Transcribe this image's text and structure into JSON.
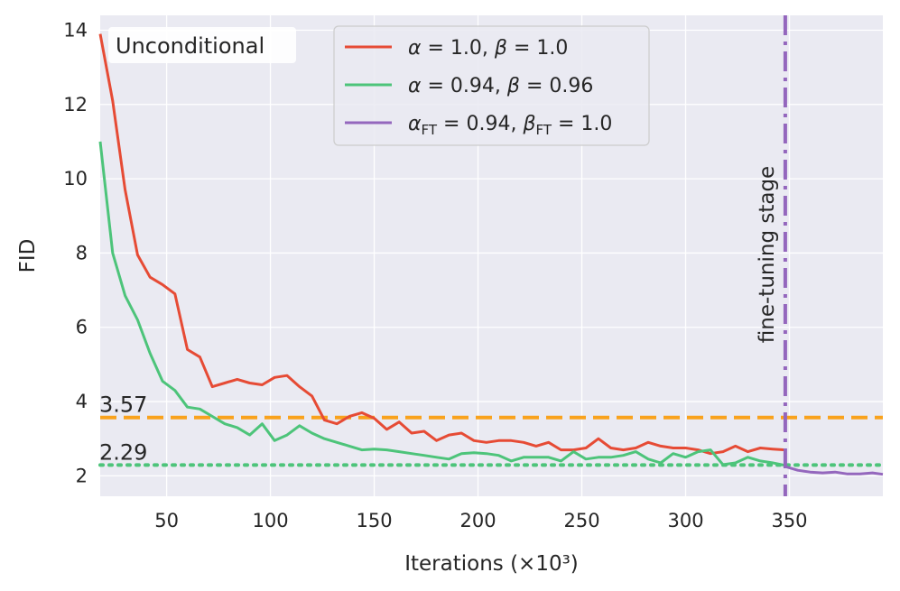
{
  "chart_data": {
    "type": "line",
    "title": "",
    "panel_label": "Unconditional",
    "xlabel": "Iterations (×10³)",
    "ylabel": "FID",
    "xlim": [
      18,
      395
    ],
    "ylim": [
      1.45,
      14.4
    ],
    "xticks": [
      50,
      100,
      150,
      200,
      250,
      300,
      350
    ],
    "yticks": [
      2,
      4,
      6,
      8,
      10,
      12,
      14
    ],
    "grid": true,
    "legend_position": "top-center",
    "colors": {
      "red": "#E64B35",
      "green": "#4DC47A",
      "purple": "#9467BD",
      "orange": "#F9A21C",
      "background": "#EAEAF2"
    },
    "series": [
      {
        "name": "α = 1.0, β = 1.0",
        "legend_parts": [
          [
            "α",
            "italic"
          ],
          [
            " = 1.0, ",
            ""
          ],
          [
            "β",
            "italic"
          ],
          [
            " = 1.0",
            ""
          ]
        ],
        "color": "#E64B35",
        "x": [
          18,
          24,
          30,
          36,
          42,
          48,
          54,
          60,
          66,
          72,
          78,
          84,
          90,
          96,
          102,
          108,
          114,
          120,
          126,
          132,
          138,
          144,
          150,
          156,
          162,
          168,
          174,
          180,
          186,
          192,
          198,
          204,
          210,
          216,
          222,
          228,
          234,
          240,
          246,
          252,
          258,
          264,
          270,
          276,
          282,
          288,
          294,
          300,
          306,
          312,
          318,
          324,
          330,
          336,
          342,
          348
        ],
        "y": [
          13.9,
          12.1,
          9.7,
          7.95,
          7.35,
          7.15,
          6.9,
          5.4,
          5.2,
          4.4,
          4.5,
          4.6,
          4.5,
          4.45,
          4.65,
          4.7,
          4.4,
          4.15,
          3.5,
          3.4,
          3.6,
          3.7,
          3.55,
          3.25,
          3.45,
          3.15,
          3.2,
          2.95,
          3.1,
          3.15,
          2.95,
          2.9,
          2.95,
          2.95,
          2.9,
          2.8,
          2.9,
          2.7,
          2.7,
          2.75,
          3.0,
          2.75,
          2.7,
          2.75,
          2.9,
          2.8,
          2.75,
          2.75,
          2.7,
          2.6,
          2.65,
          2.8,
          2.65,
          2.75,
          2.72,
          2.7
        ]
      },
      {
        "name": "α = 0.94, β = 0.96",
        "legend_parts": [
          [
            "α",
            "italic"
          ],
          [
            " = 0.94, ",
            ""
          ],
          [
            "β",
            "italic"
          ],
          [
            " = 0.96",
            ""
          ]
        ],
        "color": "#4DC47A",
        "x": [
          18,
          24,
          30,
          36,
          42,
          48,
          54,
          60,
          66,
          72,
          78,
          84,
          90,
          96,
          102,
          108,
          114,
          120,
          126,
          132,
          138,
          144,
          150,
          156,
          162,
          168,
          174,
          180,
          186,
          192,
          198,
          204,
          210,
          216,
          222,
          228,
          234,
          240,
          246,
          252,
          258,
          264,
          270,
          276,
          282,
          288,
          294,
          300,
          306,
          312,
          318,
          324,
          330,
          336,
          342,
          348
        ],
        "y": [
          11.0,
          8.0,
          6.85,
          6.2,
          5.3,
          4.55,
          4.3,
          3.85,
          3.8,
          3.6,
          3.4,
          3.3,
          3.1,
          3.4,
          2.95,
          3.1,
          3.35,
          3.15,
          3.0,
          2.9,
          2.8,
          2.7,
          2.72,
          2.7,
          2.65,
          2.6,
          2.55,
          2.5,
          2.45,
          2.6,
          2.62,
          2.6,
          2.55,
          2.4,
          2.5,
          2.5,
          2.5,
          2.4,
          2.65,
          2.45,
          2.5,
          2.5,
          2.55,
          2.65,
          2.45,
          2.35,
          2.6,
          2.5,
          2.65,
          2.7,
          2.3,
          2.35,
          2.5,
          2.4,
          2.35,
          2.28
        ]
      },
      {
        "name": "α_FT = 0.94, β_FT = 1.0",
        "legend_parts": [
          [
            "α",
            "italic"
          ],
          [
            "FT",
            "sub"
          ],
          [
            " = 0.94, ",
            ""
          ],
          [
            "β",
            "italic"
          ],
          [
            "FT",
            "sub"
          ],
          [
            " = 1.0",
            ""
          ]
        ],
        "color": "#9467BD",
        "x": [
          348,
          354,
          360,
          366,
          372,
          378,
          384,
          390,
          395
        ],
        "y": [
          2.25,
          2.15,
          2.1,
          2.08,
          2.1,
          2.05,
          2.05,
          2.08,
          2.04
        ]
      }
    ],
    "reference_lines": [
      {
        "value": 3.57,
        "label": "3.57",
        "color": "#F9A21C",
        "style": "dashed"
      },
      {
        "value": 2.29,
        "label": "2.29",
        "color": "#4DC47A",
        "style": "dotted"
      }
    ],
    "vertical_marker": {
      "x": 348,
      "label": "fine-tuning stage",
      "color": "#9467BD",
      "style": "dashdot"
    }
  }
}
